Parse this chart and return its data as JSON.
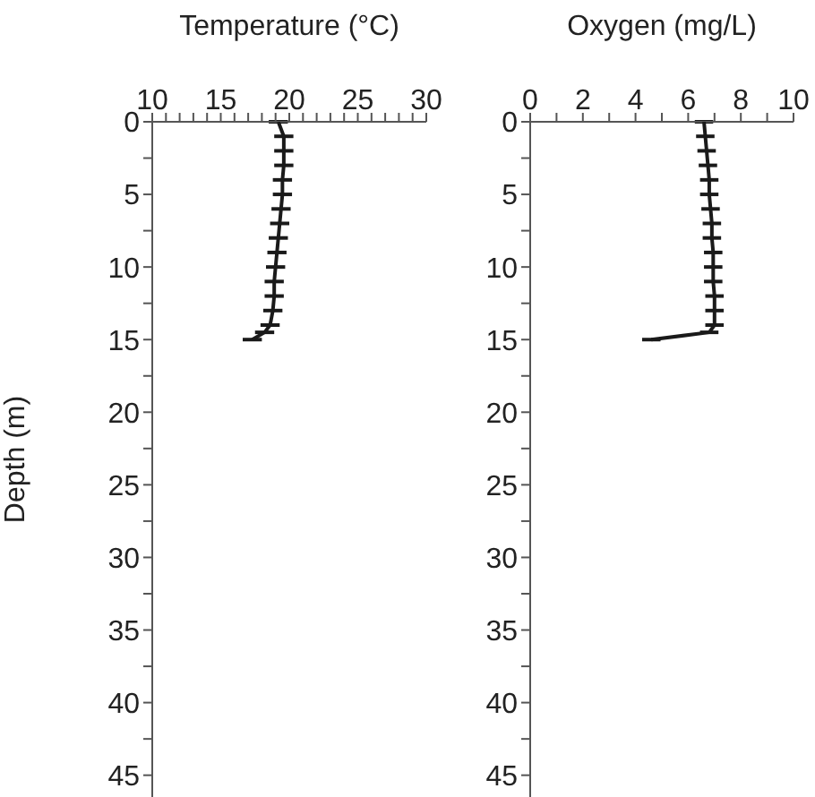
{
  "chart_data": [
    {
      "type": "line",
      "xlabel": "Temperature (°C)",
      "ylabel": "Depth (m)",
      "xlim": [
        10,
        30
      ],
      "xticks": [
        10,
        {
          "value": 11,
          "label": null
        },
        {
          "value": 12,
          "label": null
        },
        {
          "value": 13,
          "label": null
        },
        {
          "value": 14,
          "label": null
        },
        15,
        {
          "value": 16,
          "label": null
        },
        {
          "value": 17,
          "label": null
        },
        {
          "value": 18,
          "label": null
        },
        {
          "value": 19,
          "label": null
        },
        20,
        {
          "value": 21,
          "label": null
        },
        {
          "value": 22,
          "label": null
        },
        {
          "value": 23,
          "label": null
        },
        {
          "value": 24,
          "label": null
        },
        25,
        {
          "value": 26,
          "label": null
        },
        {
          "value": 27,
          "label": null
        },
        {
          "value": 28,
          "label": null
        },
        {
          "value": 29,
          "label": null
        },
        30
      ],
      "ylim": [
        46.5,
        0
      ],
      "yticks": [
        0,
        {
          "value": 2.5,
          "label": null
        },
        5,
        {
          "value": 7.5,
          "label": null
        },
        10,
        {
          "value": 12.5,
          "label": null
        },
        15,
        {
          "value": 17.5,
          "label": null
        },
        20,
        {
          "value": 22.5,
          "label": null
        },
        25,
        {
          "value": 27.5,
          "label": null
        },
        30,
        {
          "value": 32.5,
          "label": null
        },
        35,
        {
          "value": 37.5,
          "label": null
        },
        40,
        {
          "value": 42.5,
          "label": null
        },
        45
      ],
      "series": [
        {
          "color": "#1a1a1a",
          "xerrors": [
            0.7,
            0.7,
            0.7,
            0.7,
            0.7,
            0.7,
            0.7,
            0.7,
            0.7,
            0.7,
            0.7,
            0.7,
            0.7,
            0.7,
            0.7,
            0.7,
            0.7
          ],
          "x": [
            19.2,
            19.6,
            19.6,
            19.6,
            19.5,
            19.5,
            19.4,
            19.3,
            19.2,
            19.1,
            19.0,
            18.9,
            18.9,
            18.8,
            18.6,
            18.2,
            17.3
          ],
          "values": [
            0,
            1,
            2,
            3,
            4,
            5,
            6,
            7,
            8,
            9,
            10,
            11,
            12,
            13,
            14,
            14.5,
            15
          ]
        }
      ]
    },
    {
      "type": "line",
      "xlabel": "Oxygen (mg/L)",
      "xlim": [
        0,
        10
      ],
      "xticks": [
        0,
        {
          "value": 1,
          "label": null
        },
        2,
        {
          "value": 3,
          "label": null
        },
        4,
        {
          "value": 5,
          "label": null
        },
        6,
        {
          "value": 7,
          "label": null
        },
        8,
        {
          "value": 9,
          "label": null
        },
        10
      ],
      "ylim": [
        46.5,
        0
      ],
      "yticks": [
        0,
        {
          "value": 2.5,
          "label": null
        },
        5,
        {
          "value": 7.5,
          "label": null
        },
        10,
        {
          "value": 12.5,
          "label": null
        },
        15,
        {
          "value": 17.5,
          "label": null
        },
        20,
        {
          "value": 22.5,
          "label": null
        },
        25,
        {
          "value": 27.5,
          "label": null
        },
        30,
        {
          "value": 32.5,
          "label": null
        },
        35,
        {
          "value": 37.5,
          "label": null
        },
        40,
        {
          "value": 42.5,
          "label": null
        },
        45
      ],
      "series": [
        {
          "color": "#1a1a1a",
          "xerrors": [
            0.35,
            0.35,
            0.35,
            0.35,
            0.35,
            0.35,
            0.35,
            0.35,
            0.35,
            0.35,
            0.35,
            0.35,
            0.35,
            0.35,
            0.35,
            0.35,
            0.35
          ],
          "x": [
            6.6,
            6.65,
            6.7,
            6.75,
            6.8,
            6.8,
            6.85,
            6.9,
            6.9,
            6.95,
            6.95,
            6.95,
            7.0,
            7.0,
            7.0,
            6.8,
            4.6
          ],
          "values": [
            0,
            1,
            2,
            3,
            4,
            5,
            6,
            7,
            8,
            9,
            10,
            11,
            12,
            13,
            14,
            14.5,
            15
          ]
        }
      ]
    }
  ]
}
